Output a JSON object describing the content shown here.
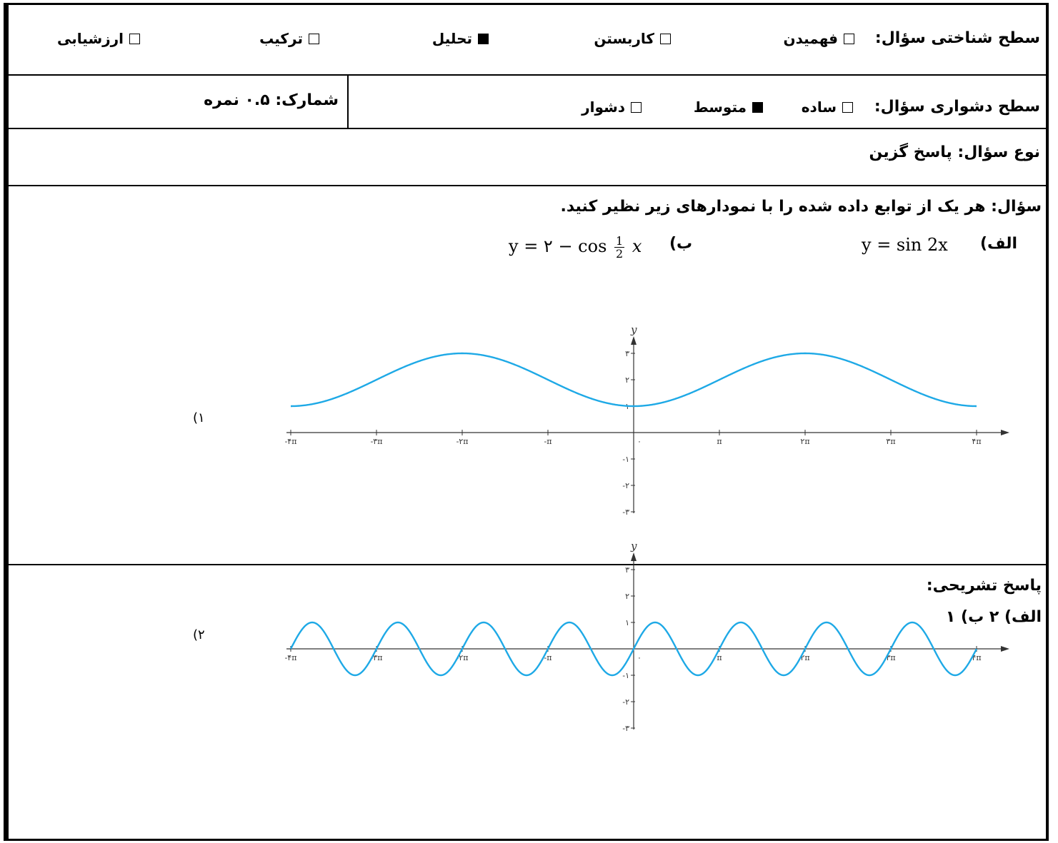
{
  "cognitive": {
    "label": "سطح شناختی سؤال:",
    "options": [
      {
        "text": "فهمیدن",
        "checked": false
      },
      {
        "text": "کاربستن",
        "checked": false
      },
      {
        "text": "تحلیل",
        "checked": true
      },
      {
        "text": "ترکیب",
        "checked": false
      },
      {
        "text": "ارزشیابی",
        "checked": false
      }
    ]
  },
  "difficulty": {
    "label": "سطح دشواری سؤال:",
    "options": [
      {
        "text": "ساده",
        "checked": false
      },
      {
        "text": "متوسط",
        "checked": true
      },
      {
        "text": "دشوار",
        "checked": false
      }
    ],
    "score": "شمارک: ۰.۵ نمره"
  },
  "qtype": "نوع سؤال: پاسخ گزین",
  "question": {
    "text": "سؤال: هر یک از توابع داده شده را با  نمودارهای زیر نظیر کنید.",
    "a_label": "الف)",
    "a_formula": "y = sin 2x",
    "b_label": "ب)",
    "b_formula_left": "y = ۲ − cos",
    "b_frac_num": "1",
    "b_frac_den": "2",
    "b_formula_right": "x"
  },
  "chart_data": [
    {
      "type": "line",
      "label": "۱)",
      "function": "y = 2 - cos(x/2)",
      "xlim": [
        -12.566,
        12.566
      ],
      "ylim": [
        -3,
        3
      ],
      "xticks": [
        "-۴π",
        "-۳π",
        "-۲π",
        "-π",
        "۰",
        "π",
        "۲π",
        "۳π",
        "۴π"
      ],
      "yticks": [
        "-۳",
        "-۲",
        "-۱",
        "۱",
        "۲",
        "۳"
      ],
      "xlabel": "x",
      "ylabel": "y",
      "color": "#1ea9e6",
      "samples": {
        "x": [
          -12.566,
          -9.425,
          -6.283,
          -3.142,
          0,
          3.142,
          6.283,
          9.425,
          12.566
        ],
        "y": [
          1,
          2,
          3,
          2,
          1,
          2,
          3,
          2,
          1
        ]
      }
    },
    {
      "type": "line",
      "label": "۲)",
      "function": "y = sin(2x)",
      "xlim": [
        -12.566,
        12.566
      ],
      "ylim": [
        -3,
        3
      ],
      "xticks": [
        "-۴π",
        "-۳π",
        "-۲π",
        "-π",
        "۰",
        "π",
        "۲π",
        "۳π",
        "۴π"
      ],
      "yticks": [
        "-۳",
        "-۲",
        "-۱",
        "۱",
        "۲",
        "۳"
      ],
      "xlabel": "x",
      "ylabel": "y",
      "color": "#1ea9e6",
      "samples": {
        "x": [
          -12.566,
          -11.781,
          -10.996,
          -10.21,
          -9.425,
          0,
          0.785,
          1.571,
          2.356,
          3.142
        ],
        "y": [
          0,
          1,
          0,
          -1,
          0,
          0,
          1,
          0,
          -1,
          0
        ]
      }
    }
  ],
  "answer": {
    "title": "پاسخ تشریحی:",
    "text": "الف) ۲   ب) ۱"
  }
}
